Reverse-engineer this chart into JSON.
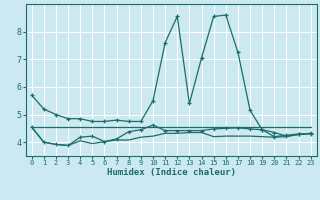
{
  "xlabel": "Humidex (Indice chaleur)",
  "bg_color": "#cce8f0",
  "line_color": "#1a6e6a",
  "grid_color": "#ffffff",
  "xlim": [
    -0.5,
    23.5
  ],
  "ylim": [
    3.5,
    9.0
  ],
  "xticks": [
    0,
    1,
    2,
    3,
    4,
    5,
    6,
    7,
    8,
    9,
    10,
    11,
    12,
    13,
    14,
    15,
    16,
    17,
    18,
    19,
    20,
    21,
    22,
    23
  ],
  "yticks": [
    4,
    5,
    6,
    7,
    8
  ],
  "series0": [
    5.7,
    5.2,
    5.0,
    4.85,
    4.85,
    4.75,
    4.75,
    4.8,
    4.75,
    4.75,
    5.5,
    7.6,
    8.55,
    5.4,
    7.05,
    8.55,
    8.6,
    7.25,
    5.15,
    4.45,
    4.2,
    4.25,
    4.3,
    4.3
  ],
  "series1": [
    4.55,
    4.55,
    4.55,
    4.55,
    4.55,
    4.55,
    4.55,
    4.55,
    4.55,
    4.55,
    4.55,
    4.55,
    4.55,
    4.55,
    4.55,
    4.55,
    4.55,
    4.55,
    4.55,
    4.55,
    4.55,
    4.55,
    4.55,
    4.55
  ],
  "series2": [
    4.55,
    4.0,
    3.92,
    3.88,
    4.18,
    4.22,
    4.02,
    4.12,
    4.38,
    4.45,
    4.62,
    4.42,
    4.42,
    4.42,
    4.42,
    4.48,
    4.5,
    4.52,
    4.48,
    4.45,
    4.35,
    4.22,
    4.28,
    4.32
  ],
  "series3": [
    4.55,
    4.0,
    3.92,
    3.88,
    4.05,
    3.95,
    4.02,
    4.08,
    4.08,
    4.18,
    4.22,
    4.32,
    4.32,
    4.35,
    4.35,
    4.2,
    4.22,
    4.22,
    4.22,
    4.2,
    4.18,
    4.2,
    4.28,
    4.32
  ]
}
